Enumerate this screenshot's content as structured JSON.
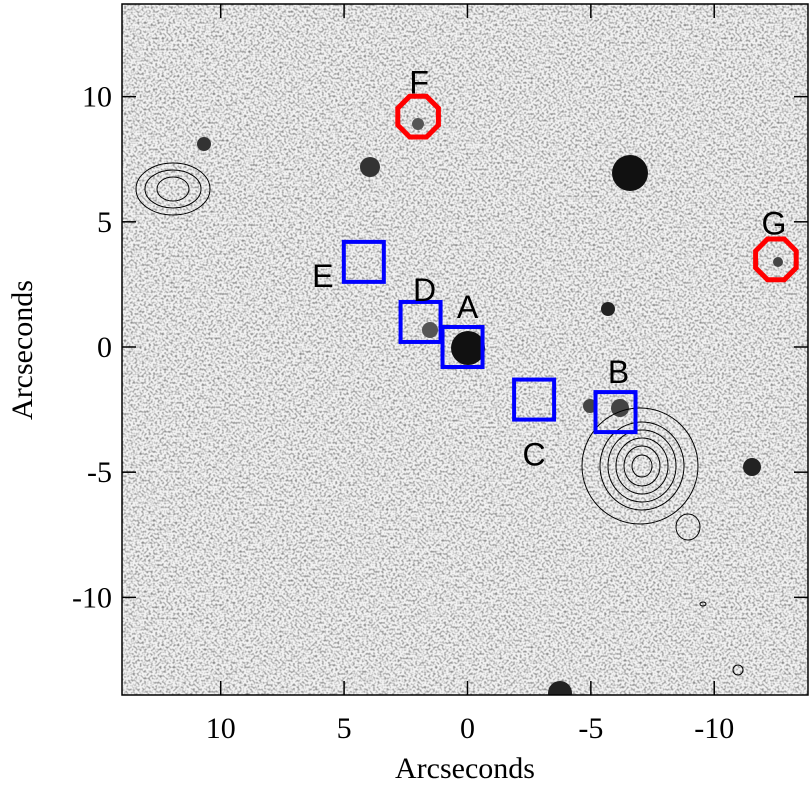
{
  "chart_data": {
    "type": "scatter",
    "x_label": "Arcseconds",
    "y_label": "Arcseconds",
    "xlim": [
      14,
      -13.8
    ],
    "ylim": [
      -13.9,
      13.7
    ],
    "xticks": [
      10,
      5,
      0,
      -5,
      -10
    ],
    "yticks": [
      10,
      5,
      0,
      -5,
      -10
    ],
    "sources": [
      {
        "label": "A",
        "x": 0.2,
        "y": 0,
        "shape": "square",
        "color": "#0000ff"
      },
      {
        "label": "B",
        "x": -6,
        "y": -2.6,
        "shape": "square",
        "color": "#0000ff"
      },
      {
        "label": "C",
        "x": -2.7,
        "y": -2.1,
        "shape": "square",
        "color": "#0000ff"
      },
      {
        "label": "D",
        "x": 1.9,
        "y": 1.0,
        "shape": "square",
        "color": "#0000ff"
      },
      {
        "label": "E",
        "x": 4.2,
        "y": 3.4,
        "shape": "square",
        "color": "#0000ff"
      },
      {
        "label": "F",
        "x": 2.0,
        "y": 9.2,
        "shape": "octagon",
        "color": "#ff0000"
      },
      {
        "label": "G",
        "x": -12.5,
        "y": 3.5,
        "shape": "octagon",
        "color": "#ff0000"
      }
    ]
  }
}
